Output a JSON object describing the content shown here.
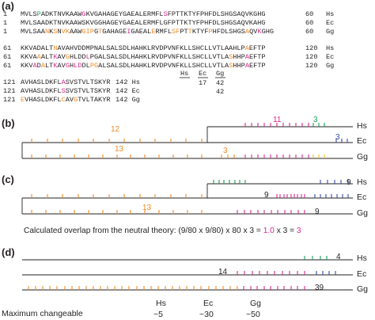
{
  "colors": {
    "black": "#231f20",
    "orange": "#f08a24",
    "magenta": "#d6298f",
    "green": "#17a05a",
    "blue": "#3b4aa0",
    "yellow": "#e8c21a"
  },
  "panel_a": {
    "label": "(a)",
    "block1": {
      "start": "1",
      "end": "60",
      "rows": [
        {
          "segments": [
            [
              "k",
              "MVLS"
            ],
            [
              "g",
              "P"
            ],
            [
              "k",
              "ADKTNVKAAW"
            ],
            [
              "m",
              "G"
            ],
            [
              "k",
              "KVGAHAGEYGAEAL"
            ],
            [
              "k",
              "ERMFL"
            ],
            [
              "m",
              "S"
            ],
            [
              "k",
              "FPTTKTYFPHFDLSHGSAQVKGHG"
            ]
          ],
          "taxon": "Hs"
        },
        {
          "segments": [
            [
              "k",
              "MVLSAADKTNVKAAWSKVGGHAGEYGAEALERMFLGFPTTKTYFPHFDLSHGSAQVKAHG"
            ]
          ],
          "taxon": "Ec"
        },
        {
          "segments": [
            [
              "k",
              "MVLSAA"
            ],
            [
              "o",
              "N"
            ],
            [
              "k",
              "K"
            ],
            [
              "o",
              "S"
            ],
            [
              "k",
              "N"
            ],
            [
              "o",
              "VK"
            ],
            [
              "k",
              "AAW"
            ],
            [
              "o",
              "GIP"
            ],
            [
              "k",
              "G"
            ],
            [
              "o",
              "T"
            ],
            [
              "k",
              "GAHAGE"
            ],
            [
              "m",
              "I"
            ],
            [
              "k",
              "GAEAL"
            ],
            [
              "o",
              "E"
            ],
            [
              "k",
              "RMFL"
            ],
            [
              "o",
              "SF"
            ],
            [
              "k",
              "PT"
            ],
            [
              "o",
              "T"
            ],
            [
              "k",
              "KTYF"
            ],
            [
              "o",
              "P"
            ],
            [
              "k",
              "HFDLSHGS"
            ],
            [
              "o",
              "A"
            ],
            [
              "k",
              "QV"
            ],
            [
              "m",
              "K"
            ],
            [
              "k",
              "GHG"
            ]
          ],
          "taxon": "Gg"
        }
      ]
    },
    "block2": {
      "start": "61",
      "end": "120",
      "rows": [
        {
          "segments": [
            [
              "k",
              "KKVADALT"
            ],
            [
              "o",
              "N"
            ],
            [
              "k",
              "AVAHVDDMPNALSALSDLHAHKLRVDPVNFKLLSHCLLVTLAAHLP"
            ],
            [
              "o",
              "A"
            ],
            [
              "k",
              "EFTP"
            ]
          ],
          "taxon": "Hs"
        },
        {
          "segments": [
            [
              "k",
              "KKVA"
            ],
            [
              "o",
              "A"
            ],
            [
              "k",
              "ALT"
            ],
            [
              "m",
              "K"
            ],
            [
              "k",
              "AV"
            ],
            [
              "o",
              "G"
            ],
            [
              "k",
              "HLDD"
            ],
            [
              "m",
              "L"
            ],
            [
              "k",
              "PGALSALSDLHAHKLRVDPVNFKLLSHCLLVTLA"
            ],
            [
              "o",
              "S"
            ],
            [
              "k",
              "HHP"
            ],
            [
              "m",
              "A"
            ],
            [
              "k",
              "EFTP"
            ]
          ],
          "taxon": "Ec"
        },
        {
          "segments": [
            [
              "k",
              "KKV"
            ],
            [
              "m",
              "A"
            ],
            [
              "k",
              "D"
            ],
            [
              "o",
              "A"
            ],
            [
              "k",
              "LT"
            ],
            [
              "m",
              "K"
            ],
            [
              "k",
              "AV"
            ],
            [
              "m",
              "G"
            ],
            [
              "k",
              "H"
            ],
            [
              "m",
              "LD"
            ],
            [
              "k",
              "DL"
            ],
            [
              "o",
              "PG"
            ],
            [
              "k",
              "ALSALSDLHAHKLRVDPVNFKLLSHCLLVTLA"
            ],
            [
              "o",
              "S"
            ],
            [
              "k",
              "HHP"
            ],
            [
              "m",
              "A"
            ],
            [
              "k",
              "EFTP"
            ]
          ],
          "taxon": "Gg"
        }
      ]
    },
    "block3": {
      "start": "121",
      "end": "142",
      "rows": [
        {
          "segments": [
            [
              "k",
              "AVHASLDKFL"
            ],
            [
              "m",
              "A"
            ],
            [
              "k",
              "SVSTVLTSKYR"
            ]
          ],
          "taxon": "Hs"
        },
        {
          "segments": [
            [
              "k",
              "AVHASLDKFL"
            ],
            [
              "m",
              "S"
            ],
            [
              "k",
              "SVSTVLTSKYR"
            ]
          ],
          "taxon": "Ec"
        },
        {
          "segments": [
            [
              "o",
              "E"
            ],
            [
              "k",
              "VHASLDKFL"
            ],
            [
              "o",
              "C"
            ],
            [
              "k",
              "AV"
            ],
            [
              "o",
              "G"
            ],
            [
              "k",
              "TVLTAKYR"
            ]
          ],
          "taxon": "Gg"
        }
      ]
    },
    "table": {
      "headers": [
        "Hs",
        "Ec",
        "Gg"
      ],
      "row1": [
        "",
        "17",
        "42"
      ],
      "row2": [
        "",
        "",
        "42"
      ]
    }
  },
  "panel_b": {
    "label": "(b)",
    "branch_labels": [
      "12",
      "11",
      "3",
      "3",
      "13",
      "3"
    ],
    "taxa": [
      "Hs",
      "Ec",
      "Gg"
    ]
  },
  "panel_c": {
    "label": "(c)",
    "branch_labels": [
      "9",
      "9",
      "9",
      "13"
    ],
    "taxa": [
      "Hs",
      "Ec",
      "Gg"
    ],
    "formula_prefix": "Calculated overlap from the neutral theory: (9/80 x 9/80) x 80 x 3 = ",
    "formula_mid": "1.0",
    "formula_x3": " x 3 = ",
    "formula_result": "3"
  },
  "panel_d": {
    "label": "(d)",
    "branch_labels": [
      "4",
      "14",
      "39"
    ],
    "taxa": [
      "Hs",
      "Ec",
      "Gg"
    ],
    "max_label": "Maximum changeable",
    "columns": [
      {
        "taxon": "Hs",
        "value": "~5"
      },
      {
        "taxon": "Ec",
        "value": "~30"
      },
      {
        "taxon": "Gg",
        "value": "~50"
      }
    ]
  }
}
